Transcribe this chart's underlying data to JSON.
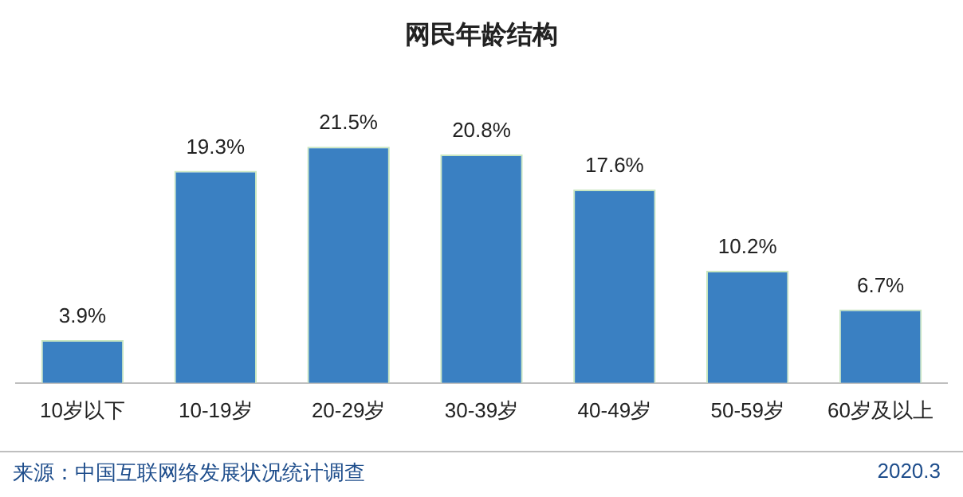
{
  "chart_data": {
    "type": "bar",
    "title": "网民年龄结构",
    "categories": [
      "10岁以下",
      "10-19岁",
      "20-29岁",
      "30-39岁",
      "40-49岁",
      "50-59岁",
      "60岁及以上"
    ],
    "values": [
      3.9,
      19.3,
      21.5,
      20.8,
      17.6,
      10.2,
      6.7
    ],
    "value_labels": [
      "3.9%",
      "19.3%",
      "21.5%",
      "20.8%",
      "17.6%",
      "10.2%",
      "6.7%"
    ],
    "color": "#3a80c2",
    "grid": false,
    "legend": false,
    "annotations": [
      "来源：中国互联网络发展状况统计调查",
      "2020.3"
    ]
  }
}
